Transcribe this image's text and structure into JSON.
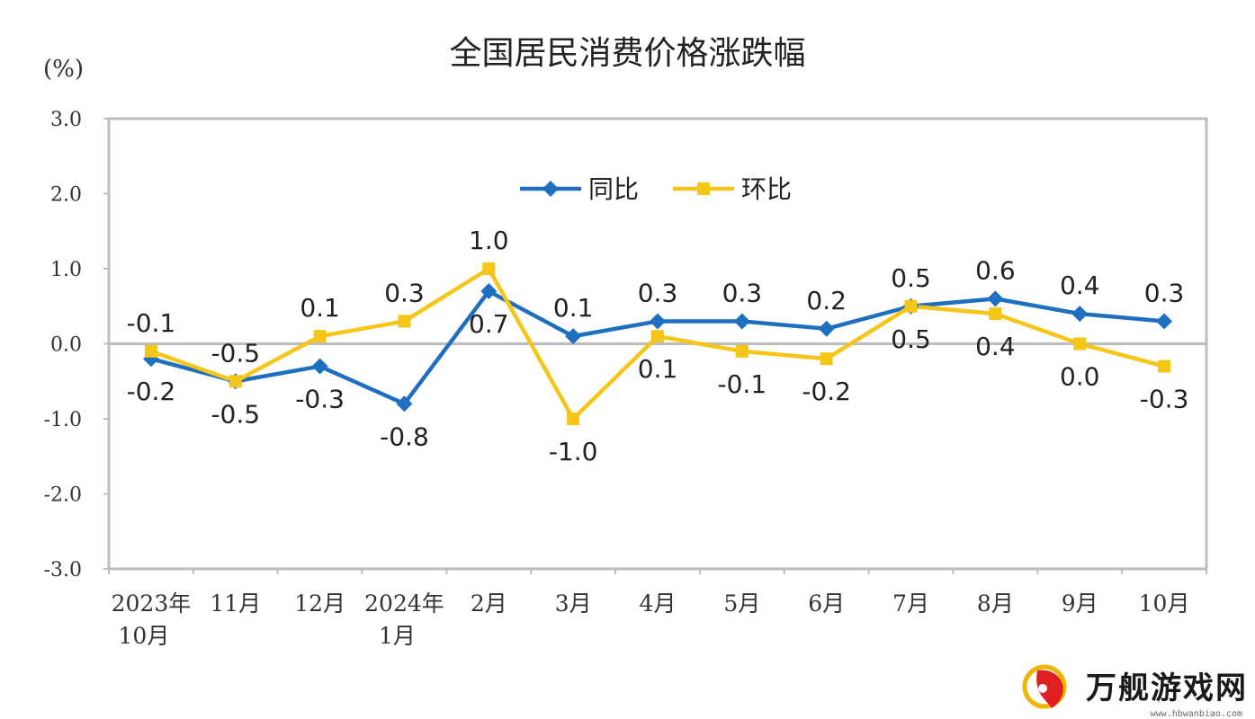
{
  "chart_data": {
    "type": "line",
    "title": "全国居民消费价格涨跌幅",
    "ylabel": "(%)",
    "ylim": [
      -3.0,
      3.0
    ],
    "yticks": [
      "3.0",
      "2.0",
      "1.0",
      "0.0",
      "-1.0",
      "-2.0",
      "-3.0"
    ],
    "categories": [
      [
        "2023年",
        "10月"
      ],
      [
        "11月"
      ],
      [
        "12月"
      ],
      [
        "2024年",
        "1月"
      ],
      [
        "2月"
      ],
      [
        "3月"
      ],
      [
        "4月"
      ],
      [
        "5月"
      ],
      [
        "6月"
      ],
      [
        "7月"
      ],
      [
        "8月"
      ],
      [
        "9月"
      ],
      [
        "10月"
      ]
    ],
    "series": [
      {
        "name": "同比",
        "color": "#1f6fc0",
        "marker": "diamond",
        "values": [
          -0.2,
          -0.5,
          -0.3,
          -0.8,
          0.7,
          0.1,
          0.3,
          0.3,
          0.2,
          0.5,
          0.6,
          0.4,
          0.3
        ],
        "labels": [
          "-0.2",
          "-0.5",
          "-0.3",
          "-0.8",
          "0.7",
          "0.1",
          "0.3",
          "0.3",
          "0.2",
          "0.5",
          "0.6",
          "0.4",
          "0.3"
        ]
      },
      {
        "name": "环比",
        "color": "#f5c518",
        "marker": "square",
        "values": [
          -0.1,
          -0.5,
          0.1,
          0.3,
          1.0,
          -1.0,
          0.1,
          -0.1,
          -0.2,
          0.5,
          0.4,
          0.0,
          -0.3
        ],
        "labels": [
          "-0.1",
          "-0.5",
          "0.1",
          "0.3",
          "1.0",
          "-1.0",
          "0.1",
          "-0.1",
          "-0.2",
          "0.5",
          "0.4",
          "0.0",
          "-0.3"
        ]
      }
    ],
    "legend": "top-center",
    "grid": false
  },
  "watermark": {
    "text": "万舰游戏网",
    "sub": "www.hbwanbiao.com"
  }
}
